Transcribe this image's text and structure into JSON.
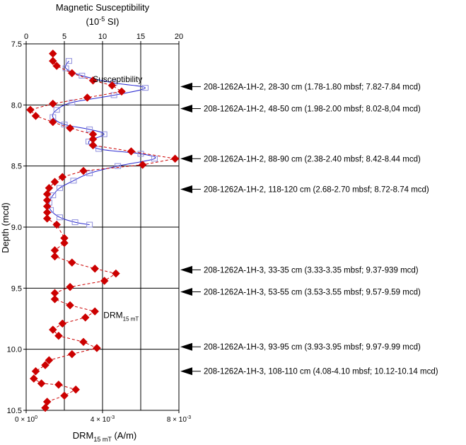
{
  "chart_data": {
    "type": "scatter",
    "top_axis": {
      "title": "Magnetic Susceptibility",
      "unit_prefix": "(10",
      "unit_exp": "-5",
      "unit_suffix": " SI)",
      "range": [
        0,
        20
      ],
      "ticks": [
        0,
        5,
        10,
        15,
        20
      ],
      "tick_labels": [
        "0",
        "5",
        "10",
        "15",
        "20"
      ]
    },
    "bottom_axis": {
      "title_main": "DRM",
      "title_sub": "15 mT",
      "title_unit": " (A/m)",
      "range": [
        0,
        0.008
      ],
      "ticks": [
        0,
        0.004,
        0.008
      ],
      "tick_labels": [
        {
          "mant": "0 × 10",
          "exp": "0"
        },
        {
          "mant": "4 × 10",
          "exp": "-3"
        },
        {
          "mant": "8 × 10",
          "exp": "-3"
        }
      ]
    },
    "y_axis": {
      "title": "Depth (mcd)",
      "range": [
        7.5,
        10.5
      ],
      "inverted": true,
      "ticks": [
        7.5,
        8.0,
        8.5,
        9.0,
        9.5,
        10.0,
        10.5
      ],
      "tick_labels": [
        "7.5",
        "8.0",
        "8.5",
        "9.0",
        "9.5",
        "10.0",
        "10.5"
      ]
    },
    "grid": true,
    "series": [
      {
        "name": "Susceptibility",
        "axis": "top",
        "color": "#2b2bd0",
        "marker": "open-square",
        "line": "solid",
        "points": [
          [
            5.6,
            7.64
          ],
          [
            5.2,
            7.7
          ],
          [
            7.3,
            7.76
          ],
          [
            11.5,
            7.82
          ],
          [
            15.6,
            7.86
          ],
          [
            11.5,
            7.92
          ],
          [
            6.0,
            7.98
          ],
          [
            4.0,
            8.04
          ],
          [
            3.5,
            8.1
          ],
          [
            5.0,
            8.16
          ],
          [
            8.3,
            8.2
          ],
          [
            10.2,
            8.24
          ],
          [
            8.2,
            8.3
          ],
          [
            9.5,
            8.36
          ],
          [
            15.0,
            8.4
          ],
          [
            16.8,
            8.44
          ],
          [
            12.0,
            8.5
          ],
          [
            8.3,
            8.56
          ],
          [
            6.2,
            8.62
          ],
          [
            4.4,
            8.68
          ],
          [
            3.5,
            8.74
          ],
          [
            3.0,
            8.8
          ],
          [
            3.2,
            8.86
          ],
          [
            4.4,
            8.92
          ],
          [
            6.4,
            8.96
          ],
          [
            8.3,
            8.98
          ]
        ]
      },
      {
        "name": "DRM",
        "label_main": "DRM",
        "label_sub": "15 mT",
        "axis": "bottom",
        "color": "#cc0000",
        "marker": "filled-diamond",
        "line": "dashed",
        "points": [
          [
            0.0014,
            7.58
          ],
          [
            0.0014,
            7.64
          ],
          [
            0.0016,
            7.68
          ],
          [
            0.0024,
            7.74
          ],
          [
            0.0035,
            7.8
          ],
          [
            0.0045,
            7.84
          ],
          [
            0.005,
            7.89
          ],
          [
            0.0032,
            7.94
          ],
          [
            0.0014,
            7.99
          ],
          [
            0.00022,
            8.04
          ],
          [
            0.0005,
            8.09
          ],
          [
            0.0014,
            8.14
          ],
          [
            0.0023,
            8.19
          ],
          [
            0.0035,
            8.24
          ],
          [
            0.0035,
            8.28
          ],
          [
            0.0035,
            8.33
          ],
          [
            0.0055,
            8.38
          ],
          [
            0.0078,
            8.44
          ],
          [
            0.0061,
            8.49
          ],
          [
            0.003,
            8.54
          ],
          [
            0.0019,
            8.59
          ],
          [
            0.0015,
            8.63
          ],
          [
            0.0012,
            8.68
          ],
          [
            0.0011,
            8.73
          ],
          [
            0.0011,
            8.78
          ],
          [
            0.0011,
            8.83
          ],
          [
            0.0011,
            8.88
          ],
          [
            0.0011,
            8.93
          ],
          [
            0.0016,
            8.98
          ],
          [
            0.002,
            9.09
          ],
          [
            0.002,
            9.13
          ],
          [
            0.0015,
            9.19
          ],
          [
            0.0015,
            9.24
          ],
          [
            0.0024,
            9.29
          ],
          [
            0.0036,
            9.34
          ],
          [
            0.0047,
            9.38
          ],
          [
            0.0041,
            9.44
          ],
          [
            0.0023,
            9.49
          ],
          [
            0.0015,
            9.54
          ],
          [
            0.0015,
            9.59
          ],
          [
            0.0023,
            9.64
          ],
          [
            0.0036,
            9.69
          ],
          [
            0.0031,
            9.74
          ],
          [
            0.0019,
            9.79
          ],
          [
            0.0014,
            9.84
          ],
          [
            0.0017,
            9.89
          ],
          [
            0.003,
            9.94
          ],
          [
            0.0037,
            9.99
          ],
          [
            0.0024,
            10.04
          ],
          [
            0.0012,
            10.09
          ],
          [
            0.001,
            10.13
          ],
          [
            0.0005,
            10.18
          ],
          [
            0.0004,
            10.24
          ],
          [
            0.0008,
            10.28
          ],
          [
            0.0017,
            10.29
          ],
          [
            0.0026,
            10.33
          ],
          [
            0.002,
            10.38
          ],
          [
            0.0011,
            10.43
          ],
          [
            0.001,
            10.48
          ]
        ]
      }
    ],
    "series_labels": [
      {
        "series": "Susceptibility",
        "depth": 7.79,
        "x_top": 6.5
      }
    ],
    "drm_label": {
      "depth": 9.72,
      "x_bottom": 0.0039
    },
    "annotations": [
      {
        "depth": 7.85,
        "text": "208-1262A-1H-2, 28-30 cm (1.78-1.80 mbsf; 7.82-7.84 mcd)"
      },
      {
        "depth": 8.03,
        "text": "208-1262A-1H-2, 48-50 cm (1.98-2.00 mbsf; 8.02-8,04 mcd)"
      },
      {
        "depth": 8.44,
        "text": "208-1262A-1H-2, 88-90 cm (2.38-2.40 mbsf; 8.42-8.44 mcd)"
      },
      {
        "depth": 8.69,
        "text": "208-1262A-1H-2, 118-120 cm (2.68-2.70 mbsf; 8.72-8.74 mcd)"
      },
      {
        "depth": 9.35,
        "text": "208-1262A-1H-3, 33-35 cm (3.33-3.35 mbsf; 9.37-939 mcd)"
      },
      {
        "depth": 9.53,
        "text": "208-1262A-1H-3, 53-55 cm (3.53-3.55 mbsf; 9.57-9.59 mcd)"
      },
      {
        "depth": 9.98,
        "text": "208-1262A-1H-3,  93-95 cm (3.93-3.95 mbsf; 9.97-9.99 mcd)"
      },
      {
        "depth": 10.18,
        "text": "208-1262A-1H-3, 108-110 cm (4.08-4.10 mbsf; 10.12-10.14 mcd)"
      }
    ]
  }
}
